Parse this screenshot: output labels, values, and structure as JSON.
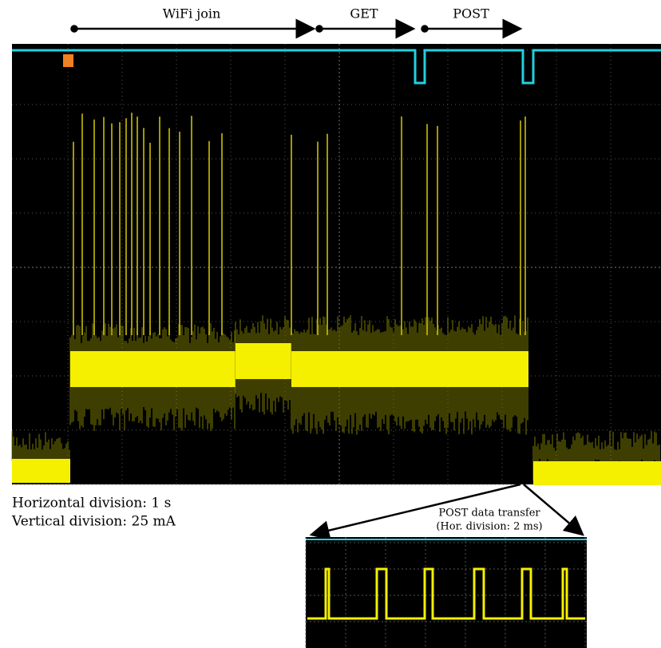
{
  "phases": [
    "WiFi join",
    "GET",
    "POST"
  ],
  "scale": {
    "horizontal": "Horizontal division: 1 s",
    "vertical": "Vertical division: 25 mA"
  },
  "inset": {
    "title": "POST data transfer",
    "subtitle": "(Hor. division: 2 ms)"
  }
}
